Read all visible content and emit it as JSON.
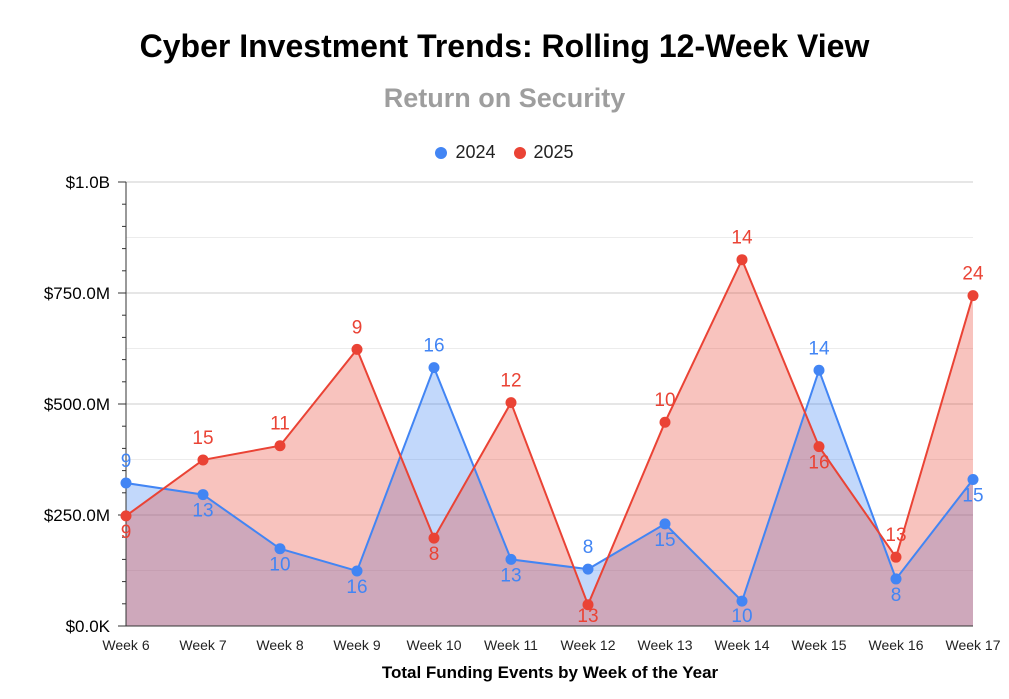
{
  "chart_data": {
    "type": "area",
    "title": "Cyber Investment Trends: Rolling 12-Week View",
    "subtitle": "Return on Security",
    "xlabel": "Total Funding Events by Week of the Year",
    "ylabel": "",
    "categories": [
      "Week 6",
      "Week 7",
      "Week 8",
      "Week 9",
      "Week 10",
      "Week 11",
      "Week 12",
      "Week 13",
      "Week 14",
      "Week 15",
      "Week 16",
      "Week 17"
    ],
    "ylim": [
      0,
      1000
    ],
    "yticks": [
      0,
      250,
      500,
      750,
      1000
    ],
    "ytick_labels": [
      "$0.0K",
      "$250.0M",
      "$500.0M",
      "$750.0M",
      "$1.0B"
    ],
    "grid": true,
    "legend": "top-center",
    "series": [
      {
        "name": "2024",
        "color": "#4285f4",
        "values": [
          322,
          296,
          174,
          124,
          582,
          150,
          128,
          230,
          56,
          576,
          106,
          330
        ],
        "labels": [
          "9",
          "13",
          "10",
          "16",
          "16",
          "13",
          "8",
          "15",
          "10",
          "14",
          "8",
          "15"
        ]
      },
      {
        "name": "2025",
        "color": "#ea4335",
        "values": [
          248,
          374,
          406,
          623,
          198,
          503,
          48,
          459,
          825,
          404,
          155,
          744
        ],
        "labels": [
          "9",
          "15",
          "11",
          "9",
          "8",
          "12",
          "13",
          "10",
          "14",
          "16",
          "13",
          "24"
        ]
      }
    ]
  }
}
